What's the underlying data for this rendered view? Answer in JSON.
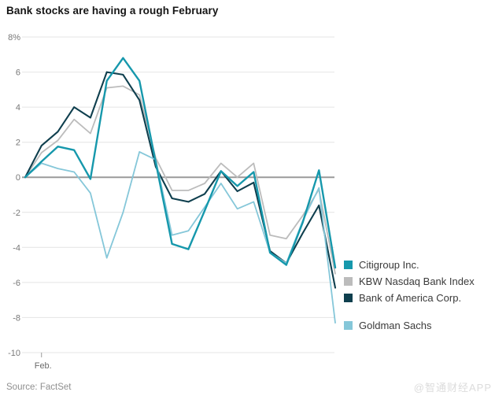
{
  "title": "Bank stocks are having a rough February",
  "source": "Source: FactSet",
  "watermark": "@智通财经APP",
  "chart_data": {
    "type": "line",
    "title": "Bank stocks are having a rough February",
    "xlabel": "",
    "ylabel": "",
    "ylim": [
      -10,
      8
    ],
    "grid": "horizontal",
    "legend_position": "right",
    "x_tick_label": "Feb.",
    "x_tick_index": 1,
    "y_ticks": [
      8,
      6,
      4,
      2,
      0,
      -2,
      -4,
      -6,
      -8,
      -10
    ],
    "y_tick_labels": [
      "8%",
      "6",
      "4",
      "2",
      "0",
      "-2",
      "-4",
      "-6",
      "-8",
      "-10"
    ],
    "zero_line_color": "#9a9a9a",
    "gridline_color": "#e4e4e4",
    "series": [
      {
        "name": "Citigroup Inc.",
        "color": "#1698ac",
        "values": [
          0,
          0.9,
          1.75,
          1.55,
          -0.1,
          5.5,
          6.8,
          5.5,
          0.85,
          -3.8,
          -4.1,
          -1.9,
          0.35,
          -0.5,
          0.3,
          -4.3,
          -5.0,
          -2.6,
          0.4,
          -5.15
        ]
      },
      {
        "name": "KBW Nasdaq Bank Index",
        "color": "#bcbcbc",
        "values": [
          0,
          1.4,
          2.1,
          3.3,
          2.5,
          5.1,
          5.2,
          4.7,
          1.1,
          -0.75,
          -0.75,
          -0.35,
          0.8,
          0.0,
          0.8,
          -3.3,
          -3.5,
          -2.2,
          -0.7,
          -5.5
        ]
      },
      {
        "name": "Bank of America Corp.",
        "color": "#0f3f4e",
        "values": [
          0,
          1.8,
          2.6,
          4.0,
          3.4,
          6.0,
          5.85,
          4.4,
          0.6,
          -1.2,
          -1.4,
          -0.95,
          0.35,
          -0.8,
          -0.3,
          -4.2,
          -4.9,
          -3.2,
          -1.6,
          -6.3
        ]
      },
      {
        "name": "Goldman Sachs",
        "color": "#85c7d9",
        "legend_gap_before": true,
        "values": [
          0,
          0.8,
          0.5,
          0.3,
          -0.9,
          -4.6,
          -2.0,
          1.45,
          1.0,
          -3.3,
          -3.05,
          -1.7,
          -0.35,
          -1.8,
          -1.4,
          -4.3,
          -4.9,
          -2.5,
          -0.6,
          -8.3
        ]
      }
    ]
  }
}
